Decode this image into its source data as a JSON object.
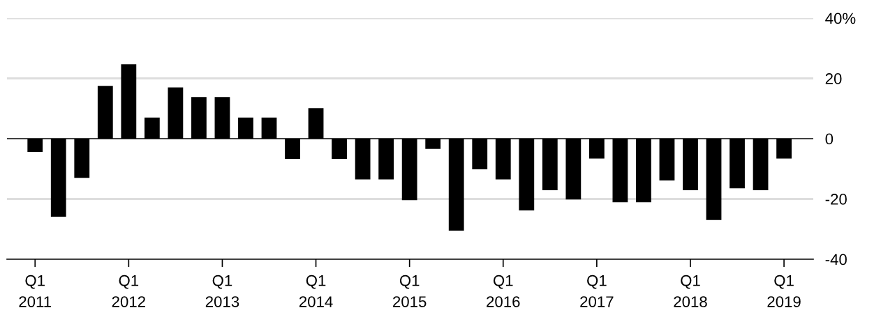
{
  "chart_data": {
    "type": "bar",
    "categories": [
      "Q1\n2011",
      null,
      null,
      null,
      "Q1\n2012",
      null,
      null,
      null,
      "Q1\n2013",
      null,
      null,
      null,
      "Q1\n2014",
      null,
      null,
      null,
      "Q1\n2015",
      null,
      null,
      null,
      "Q1\n2016",
      null,
      null,
      null,
      "Q1\n2017",
      null,
      null,
      null,
      "Q1\n2018",
      null,
      null,
      null,
      "Q1\n2019"
    ],
    "values": [
      -4.4,
      -25.9,
      -13,
      17.5,
      24.7,
      7,
      17,
      13.8,
      13.8,
      7,
      7,
      -6.7,
      10.1,
      -6.7,
      -13.5,
      -13.5,
      -20.4,
      -3.4,
      -30.5,
      -10.2,
      -13.5,
      -23.8,
      -17.1,
      -20.2,
      -6.6,
      -21.1,
      -21.1,
      -13.9,
      -17.1,
      -27,
      -16.5,
      -17.1,
      -6.6
    ],
    "color": "#000000",
    "ylim": [
      -40,
      40
    ],
    "yticks": [
      -40,
      -20,
      0,
      20,
      {
        "value": 40,
        "label": "40%"
      }
    ],
    "grid": "y"
  }
}
